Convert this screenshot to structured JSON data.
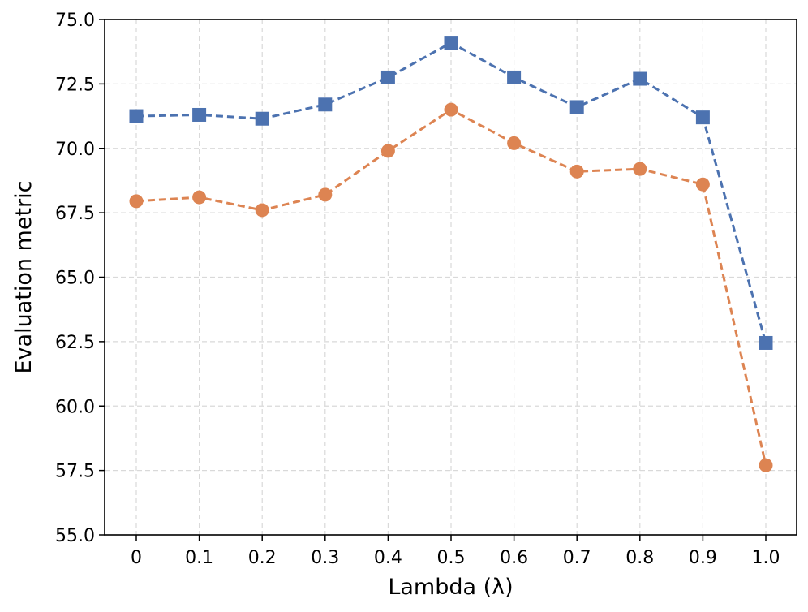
{
  "chart_data": {
    "type": "line",
    "title": "",
    "xlabel": "Lambda (λ)",
    "ylabel": "Evaluation metric",
    "categories": [
      "0",
      "0.1",
      "0.2",
      "0.3",
      "0.4",
      "0.5",
      "0.6",
      "0.7",
      "0.8",
      "0.9",
      "1.0"
    ],
    "ylim": [
      55.0,
      75.0
    ],
    "yticks": [
      "55.0",
      "57.5",
      "60.0",
      "62.5",
      "65.0",
      "67.5",
      "70.0",
      "72.5",
      "75.0"
    ],
    "grid": true,
    "legend": "none",
    "series": [
      {
        "name": "series-square",
        "color": "#4c72b0",
        "marker": "square",
        "linestyle": "dashed",
        "values": [
          71.25,
          71.3,
          71.15,
          71.7,
          72.75,
          74.1,
          72.75,
          71.6,
          72.7,
          71.2,
          62.45
        ]
      },
      {
        "name": "series-circle",
        "color": "#dd8452",
        "marker": "circle",
        "linestyle": "dashed",
        "values": [
          67.95,
          68.1,
          67.6,
          68.2,
          69.9,
          71.5,
          70.2,
          69.1,
          69.2,
          68.6,
          57.7
        ]
      }
    ]
  }
}
